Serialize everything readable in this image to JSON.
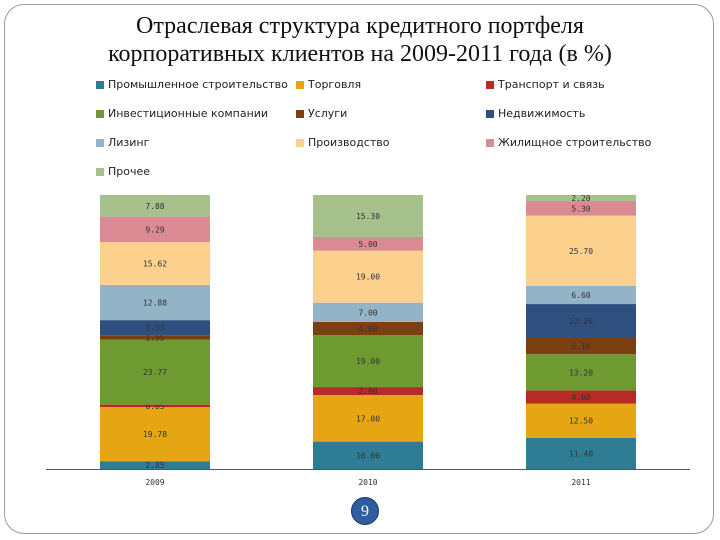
{
  "title_line1": "Отраслевая структура кредитного портфеля",
  "title_line2": "корпоративных клиентов на 2009-2011 года (в %)",
  "page_number": "9",
  "chart_data": {
    "type": "bar",
    "stacked": true,
    "categories": [
      "2009",
      "2010",
      "2011"
    ],
    "ylim": [
      0,
      100
    ],
    "grid": false,
    "legend_position": "top",
    "series": [
      {
        "name": "Промышленное строительство",
        "color": "#2e7d95",
        "values": [
          2.85,
          10.0,
          11.4
        ],
        "labels": [
          "2.85",
          "10.00",
          "11.40"
        ]
      },
      {
        "name": "Торговля",
        "color": "#e6a613",
        "values": [
          19.78,
          17.0,
          12.5
        ],
        "labels": [
          "19.78",
          "17.00",
          "12.50"
        ]
      },
      {
        "name": "Транспорт и связь",
        "color": "#b82a25",
        "values": [
          0.85,
          2.9,
          4.8
        ],
        "labels": [
          "0.85",
          "2.90",
          "4.80"
        ]
      },
      {
        "name": "Инвестиционные компании",
        "color": "#6f9a32",
        "values": [
          23.77,
          19.0,
          13.2
        ],
        "labels": [
          "23.77",
          "19.00",
          "13.20"
        ]
      },
      {
        "name": "Услуги",
        "color": "#7c3f12",
        "values": [
          1.55,
          4.8,
          6.1
        ],
        "labels": [
          "1.55",
          "4.80",
          "6.10"
        ]
      },
      {
        "name": "Недвижимость",
        "color": "#2f4f7f",
        "values": [
          5.53,
          0,
          12.2
        ],
        "labels": [
          "5.53",
          "",
          "12.20"
        ]
      },
      {
        "name": "Лизинг",
        "color": "#93b3c7",
        "values": [
          12.88,
          7.0,
          6.6
        ],
        "labels": [
          "12.88",
          "7.00",
          "6.60"
        ]
      },
      {
        "name": "Производство",
        "color": "#fcd08d",
        "values": [
          15.62,
          19.0,
          25.7
        ],
        "labels": [
          "15.62",
          "19.00",
          "25.70"
        ]
      },
      {
        "name": "Жилищное строительство",
        "color": "#d98a92",
        "values": [
          9.29,
          5.0,
          5.3
        ],
        "labels": [
          "9.29",
          "5.00",
          "5.30"
        ]
      },
      {
        "name": "Прочее",
        "color": "#a7c18c",
        "values": [
          7.88,
          15.3,
          2.2
        ],
        "labels": [
          "7.88",
          "15.30",
          "2.20"
        ]
      }
    ]
  }
}
